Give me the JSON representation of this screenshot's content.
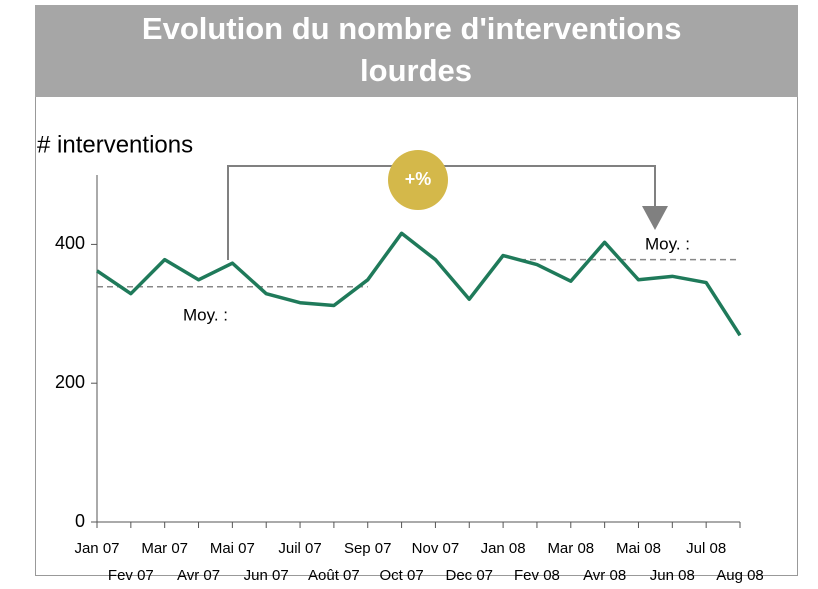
{
  "chart_data": {
    "type": "line",
    "title": "Evolution du nombre d'interventions lourdes",
    "y_label": "# interventions",
    "categories": [
      "Jan 07",
      "Fev 07",
      "Mar 07",
      "Avr 07",
      "Mai 07",
      "Jun 07",
      "Juil 07",
      "Août 07",
      "Sep 07",
      "Oct 07",
      "Nov 07",
      "Dec 07",
      "Jan 08",
      "Fev 08",
      "Mar 08",
      "Avr 08",
      "Mai 08",
      "Jun 08",
      "Jul 08",
      "Aug 08"
    ],
    "series": [
      {
        "name": "# interventions",
        "color": "#1f7a5a",
        "values": [
          362,
          329,
          378,
          349,
          373,
          329,
          316,
          312,
          349,
          416,
          378,
          321,
          384,
          371,
          347,
          403,
          349,
          354,
          345,
          269
        ]
      }
    ],
    "averages": [
      {
        "label": "Moy. :",
        "value": 339
      },
      {
        "label": "Moy. :",
        "value": 378
      }
    ],
    "annotation": "+%",
    "ylim": [
      0,
      500
    ],
    "yticks": [
      0,
      200,
      400
    ]
  }
}
